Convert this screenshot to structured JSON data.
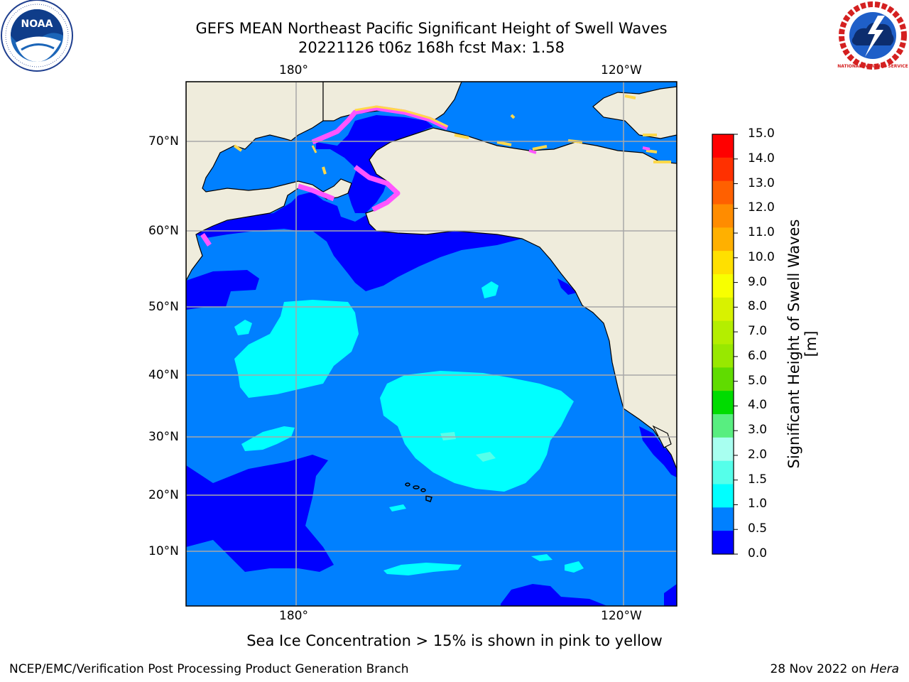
{
  "header": {
    "title_line1": "GEFS MEAN Northeast Pacific Significant Height of Swell Waves",
    "title_line2": "20221126 t06z 168h fcst   Max: 1.58"
  },
  "logos": {
    "left_text": "NOAA",
    "right_text": "NATIONAL WEATHER SERVICE"
  },
  "map": {
    "top_lon_labels": [
      "180°",
      "120°W"
    ],
    "bottom_lon_labels": [
      "180°",
      "120°W"
    ],
    "lat_labels": [
      "70°N",
      "60°N",
      "50°N",
      "40°N",
      "30°N",
      "20°N",
      "10°N"
    ],
    "colors": {
      "land": "#efecdc",
      "ocean_0_0p5": "#0000ff",
      "ocean_0p5_1": "#0080ff",
      "ocean_1_1p5": "#00ffff",
      "ocean_1p5_2": "#55ffea",
      "ice_pink": "#ff55ff",
      "ice_yellow": "#ffd84a",
      "grid": "#a8a8a8"
    }
  },
  "colorbar": {
    "label": "Significant Height of Swell Waves [m]",
    "ticks": [
      "15.0",
      "14.0",
      "13.0",
      "12.0",
      "11.0",
      "10.0",
      "9.0",
      "8.0",
      "7.0",
      "6.0",
      "5.0",
      "4.0",
      "3.0",
      "2.0",
      "1.5",
      "1.0",
      "0.5",
      "0.0"
    ],
    "colors": [
      "#ff0000",
      "#ff3000",
      "#ff6000",
      "#ff8c00",
      "#ffb000",
      "#ffe000",
      "#f8ff00",
      "#d8f200",
      "#b4ee00",
      "#98e800",
      "#60dc00",
      "#00dc00",
      "#58ee80",
      "#a8fff0",
      "#55ffea",
      "#00ffff",
      "#0080ff",
      "#0000ff"
    ]
  },
  "caption": "Sea Ice Concentration > 15% is shown in pink to yellow",
  "footer": {
    "left": "NCEP/EMC/Verification Post Processing Product Generation Branch",
    "date": "28 Nov 2022 on ",
    "machine": "Hera"
  }
}
